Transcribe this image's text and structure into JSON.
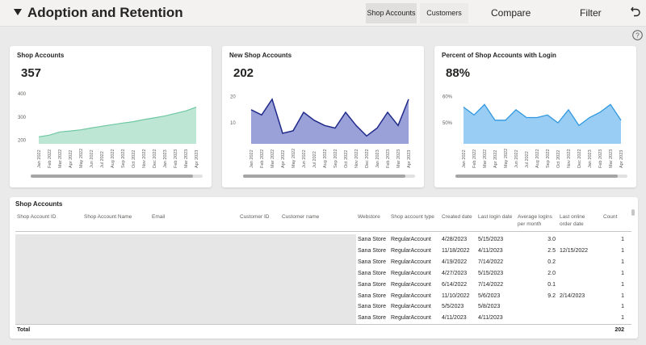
{
  "header": {
    "title": "Adoption and Retention",
    "tabs": [
      "Shop Accounts",
      "Customers"
    ],
    "compare_label": "Compare",
    "filter_label": "Filter"
  },
  "colors": {
    "green": "#6fc7a2",
    "blue": "#1f2a8a",
    "purple_fill": "#9aa0d8",
    "sky": "#2f98e0",
    "sky_fill": "#99cdf3"
  },
  "cards": [
    {
      "title": "Shop Accounts",
      "kpi": "357"
    },
    {
      "title": "New Shop Accounts",
      "kpi": "202"
    },
    {
      "title": "Percent of Shop Accounts with Login",
      "kpi": "88%"
    }
  ],
  "chart_data": [
    {
      "type": "area",
      "title": "Shop Accounts",
      "x": [
        "Jan 2022",
        "Feb 2022",
        "Mar 2022",
        "Apr 2022",
        "May 2022",
        "Jun 2022",
        "Jul 2022",
        "Aug 2022",
        "Sep 2022",
        "Oct 2022",
        "Nov 2022",
        "Dec 2022",
        "Jan 2023",
        "Feb 2023",
        "Mar 2023",
        "Apr 2023"
      ],
      "values": [
        215,
        222,
        236,
        240,
        245,
        253,
        260,
        267,
        274,
        280,
        289,
        296,
        304,
        315,
        326,
        342
      ],
      "yticks": [
        "200",
        "300",
        "400"
      ],
      "ylim": [
        185,
        410
      ]
    },
    {
      "type": "area",
      "title": "New Shop Accounts",
      "x": [
        "Jan 2022",
        "Feb 2022",
        "Mar 2022",
        "Apr 2022",
        "May 2022",
        "Jun 2022",
        "Jul 2022",
        "Aug 2022",
        "Sep 2022",
        "Oct 2022",
        "Nov 2022",
        "Dec 2022",
        "Jan 2023",
        "Feb 2023",
        "Mar 2023",
        "Apr 2023"
      ],
      "values": [
        15,
        13,
        19,
        6,
        7,
        14,
        11,
        9,
        8,
        14,
        9,
        5,
        8,
        14,
        9,
        19
      ],
      "yticks": [
        "10",
        "20"
      ],
      "ylim": [
        2,
        22
      ]
    },
    {
      "type": "area",
      "title": "Percent of Shop Accounts with Login",
      "x": [
        "Jan 2022",
        "Feb 2022",
        "Mar 2022",
        "Apr 2022",
        "May 2022",
        "Jun 2022",
        "Jul 2022",
        "Aug 2022",
        "Sep 2022",
        "Oct 2022",
        "Nov 2022",
        "Dec 2022",
        "Jan 2023",
        "Feb 2023",
        "Mar 2023",
        "Apr 2023"
      ],
      "values": [
        56,
        53,
        57,
        51,
        51,
        55,
        52,
        52,
        53,
        50,
        55,
        49,
        52,
        54,
        57,
        51
      ],
      "yticks": [
        "50%",
        "60%"
      ],
      "ylim": [
        42,
        62
      ]
    }
  ],
  "table": {
    "title": "Shop Accounts",
    "columns": [
      "Shop Account ID",
      "Shop Account Name",
      "Email",
      "Customer ID",
      "Customer name",
      "Webstore",
      "Shop account type",
      "Created date",
      "Last login date",
      "Average logins per month",
      "Last online order date",
      "Count"
    ],
    "rows": [
      [
        "Sana Store",
        "RegularAccount",
        "4/28/2023",
        "5/15/2023",
        "3.0",
        "",
        "1"
      ],
      [
        "Sana Store",
        "RegularAccount",
        "11/18/2022",
        "4/11/2023",
        "2.5",
        "12/15/2022",
        "1"
      ],
      [
        "Sana Store",
        "RegularAccount",
        "4/19/2022",
        "7/14/2022",
        "0.2",
        "",
        "1"
      ],
      [
        "Sana Store",
        "RegularAccount",
        "4/27/2023",
        "5/15/2023",
        "2.0",
        "",
        "1"
      ],
      [
        "Sana Store",
        "RegularAccount",
        "6/14/2022",
        "7/14/2022",
        "0.1",
        "",
        "1"
      ],
      [
        "Sana Store",
        "RegularAccount",
        "11/10/2022",
        "5/6/2023",
        "9.2",
        "2/14/2023",
        "1"
      ],
      [
        "Sana Store",
        "RegularAccount",
        "5/5/2023",
        "5/8/2023",
        "",
        "",
        "1"
      ],
      [
        "Sana Store",
        "RegularAccount",
        "4/11/2023",
        "4/11/2023",
        "",
        "",
        "1"
      ]
    ],
    "total_label": "Total",
    "total_count": "202"
  }
}
